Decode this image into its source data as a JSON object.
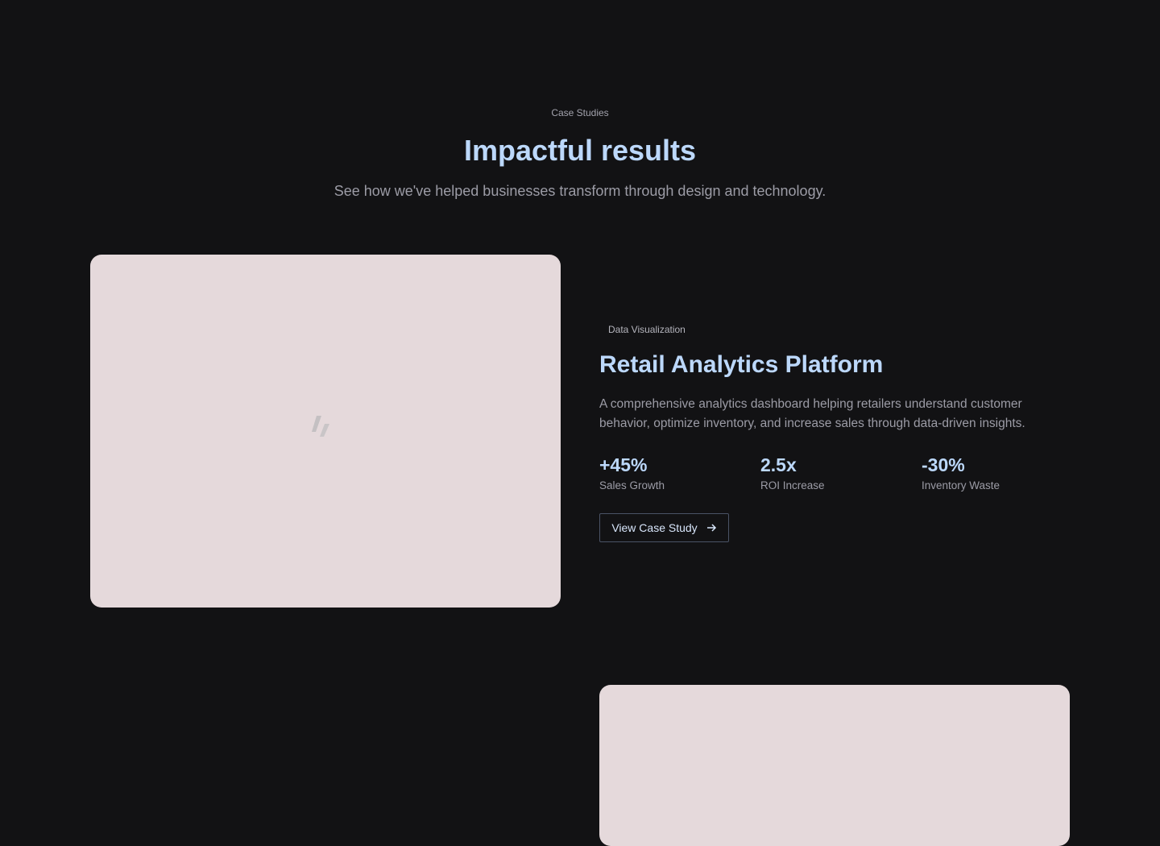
{
  "section": {
    "eyebrow": "Case Studies",
    "title": "Impactful results",
    "subtitle": "See how we've helped businesses transform through design and technology."
  },
  "case_study": {
    "tag": "Data Visualization",
    "title": "Retail Analytics Platform",
    "description": "A comprehensive analytics dashboard helping retailers understand customer behavior, optimize inventory, and increase sales through data-driven insights.",
    "metrics": [
      {
        "value": "+45%",
        "label": "Sales Growth"
      },
      {
        "value": "2.5x",
        "label": "ROI Increase"
      },
      {
        "value": "-30%",
        "label": "Inventory Waste"
      }
    ],
    "button_label": "View Case Study",
    "button_icon": "arrow-right-icon"
  },
  "colors": {
    "background": "#121214",
    "accent": "#bcd8fb",
    "image_placeholder": "#e5d9db"
  }
}
